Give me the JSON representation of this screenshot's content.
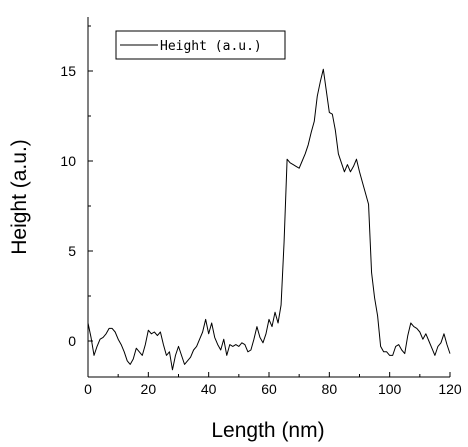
{
  "chart_data": {
    "type": "line",
    "xlabel": "Length (nm)",
    "ylabel": "Height (a.u.)",
    "xlim": [
      0,
      120
    ],
    "ylim": [
      -2,
      18
    ],
    "xticks": [
      0,
      20,
      40,
      60,
      80,
      100,
      120
    ],
    "yticks": [
      0,
      5,
      10,
      15
    ],
    "grid": false,
    "legend_position": "top-left",
    "series": [
      {
        "name": "Height (a.u.)",
        "color": "#000000",
        "x": [
          0,
          1,
          2,
          3,
          4,
          5,
          6,
          7,
          8,
          9,
          10,
          11,
          12,
          13,
          14,
          15,
          16,
          17,
          18,
          19,
          20,
          21,
          22,
          23,
          24,
          25,
          26,
          27,
          28,
          29,
          30,
          31,
          32,
          33,
          34,
          35,
          36,
          37,
          38,
          39,
          40,
          41,
          42,
          43,
          44,
          45,
          46,
          47,
          48,
          49,
          50,
          51,
          52,
          53,
          54,
          55,
          56,
          57,
          58,
          59,
          60,
          61,
          62,
          63,
          64,
          65,
          66,
          67,
          68,
          69,
          70,
          71,
          72,
          73,
          74,
          75,
          76,
          77,
          78,
          79,
          80,
          81,
          82,
          83,
          84,
          85,
          86,
          87,
          88,
          89,
          90,
          91,
          92,
          93,
          94,
          95,
          96,
          97,
          98,
          99,
          100,
          101,
          102,
          103,
          104,
          105,
          106,
          107,
          108,
          109,
          110,
          111,
          112,
          113,
          114,
          115,
          116,
          117,
          118,
          119,
          120
        ],
        "y": [
          1.0,
          0.2,
          -0.8,
          -0.3,
          0.1,
          0.2,
          0.4,
          0.7,
          0.7,
          0.5,
          0.1,
          -0.2,
          -0.6,
          -1.1,
          -1.3,
          -1.0,
          -0.4,
          -0.6,
          -0.8,
          -0.2,
          0.6,
          0.4,
          0.5,
          0.3,
          0.5,
          -0.2,
          -0.8,
          -0.6,
          -1.6,
          -0.8,
          -0.3,
          -0.8,
          -1.3,
          -1.1,
          -0.9,
          -0.5,
          -0.3,
          0.1,
          0.5,
          1.2,
          0.4,
          1.0,
          0.2,
          -0.2,
          -0.5,
          0.1,
          -0.8,
          -0.2,
          -0.3,
          -0.2,
          -0.3,
          -0.1,
          -0.2,
          -0.6,
          -0.5,
          0.1,
          0.8,
          0.2,
          -0.1,
          0.4,
          1.2,
          0.8,
          1.6,
          1.0,
          2.0,
          5.5,
          10.1,
          9.9,
          9.8,
          9.7,
          9.6,
          10.0,
          10.4,
          10.9,
          11.6,
          12.2,
          13.6,
          14.4,
          15.1,
          13.9,
          12.7,
          12.6,
          11.7,
          10.4,
          9.9,
          9.4,
          9.8,
          9.4,
          9.7,
          10.1,
          9.4,
          8.8,
          8.2,
          7.6,
          3.8,
          2.4,
          1.4,
          -0.3,
          -0.6,
          -0.6,
          -0.8,
          -0.8,
          -0.3,
          -0.2,
          -0.5,
          -0.7,
          0.3,
          1.0,
          0.8,
          0.7,
          0.5,
          0.1,
          0.4,
          0.0,
          -0.4,
          -0.8,
          -0.3,
          -0.1,
          0.4,
          -0.2,
          -0.7
        ]
      }
    ]
  }
}
